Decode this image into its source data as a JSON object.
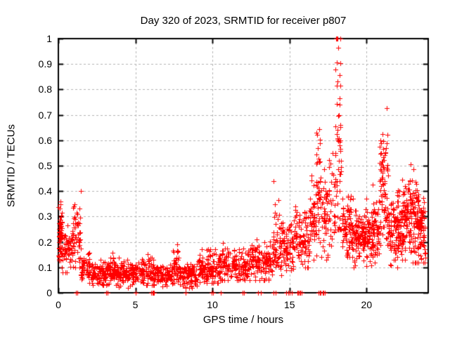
{
  "window": {
    "background": "#ffffff"
  },
  "chart_data": {
    "type": "scatter",
    "title": "Day 320 of 2023, SRMTID for receiver p807",
    "xlabel": "GPS time / hours",
    "ylabel": "SRMTID / TECUs",
    "xlim": [
      0,
      24
    ],
    "ylim": [
      0,
      1
    ],
    "x_ticks": [
      0,
      5,
      10,
      15,
      20
    ],
    "x_tick_labels": [
      "0",
      "5",
      "10",
      "15",
      "20"
    ],
    "y_ticks": [
      0,
      0.1,
      0.2,
      0.3,
      0.4,
      0.5,
      0.6,
      0.7,
      0.8,
      0.9,
      1
    ],
    "y_tick_labels": [
      "0",
      "0.1",
      "0.2",
      "0.3",
      "0.4",
      "0.5",
      "0.6",
      "0.7",
      "0.8",
      "0.9",
      "1"
    ],
    "grid": true,
    "grid_color": "#b3b3b3",
    "axis_color": "#000000",
    "legend": "none",
    "marker": {
      "shape": "plus",
      "color": "#ff0000",
      "size": 7
    },
    "series": [
      {
        "name": "SRMTID",
        "generator": {
          "seed": 42,
          "segments": [
            {
              "x0": 0.0,
              "x1": 0.25,
              "n": 55,
              "mean": 0.23,
              "sd": 0.055,
              "min": 0.12,
              "max": 0.36
            },
            {
              "x0": 0.25,
              "x1": 0.95,
              "n": 60,
              "mean": 0.17,
              "sd": 0.05,
              "min": 0.08,
              "max": 0.34
            },
            {
              "x0": 0.95,
              "x1": 1.45,
              "n": 50,
              "mean": 0.22,
              "sd": 0.075,
              "min": 0.1,
              "max": 0.4
            },
            {
              "x0": 1.45,
              "x1": 2.2,
              "n": 60,
              "mean": 0.1,
              "sd": 0.03,
              "min": 0.04,
              "max": 0.18
            },
            {
              "x0": 2.2,
              "x1": 3.3,
              "n": 95,
              "mean": 0.075,
              "sd": 0.025,
              "min": 0.03,
              "max": 0.14
            },
            {
              "x0": 3.3,
              "x1": 3.7,
              "n": 40,
              "mean": 0.1,
              "sd": 0.035,
              "min": 0.04,
              "max": 0.18
            },
            {
              "x0": 3.7,
              "x1": 5.3,
              "n": 130,
              "mean": 0.075,
              "sd": 0.025,
              "min": 0.02,
              "max": 0.14
            },
            {
              "x0": 5.3,
              "x1": 6.1,
              "n": 70,
              "mean": 0.085,
              "sd": 0.03,
              "min": 0.03,
              "max": 0.17
            },
            {
              "x0": 6.1,
              "x1": 7.4,
              "n": 110,
              "mean": 0.07,
              "sd": 0.022,
              "min": 0.02,
              "max": 0.13
            },
            {
              "x0": 7.4,
              "x1": 7.8,
              "n": 40,
              "mean": 0.1,
              "sd": 0.035,
              "min": 0.04,
              "max": 0.19
            },
            {
              "x0": 7.8,
              "x1": 9.0,
              "n": 100,
              "mean": 0.07,
              "sd": 0.025,
              "min": 0.02,
              "max": 0.14
            },
            {
              "x0": 9.0,
              "x1": 10.4,
              "n": 115,
              "mean": 0.095,
              "sd": 0.03,
              "min": 0.04,
              "max": 0.17
            },
            {
              "x0": 10.4,
              "x1": 11.3,
              "n": 75,
              "mean": 0.12,
              "sd": 0.04,
              "min": 0.05,
              "max": 0.23
            },
            {
              "x0": 11.3,
              "x1": 12.4,
              "n": 90,
              "mean": 0.105,
              "sd": 0.032,
              "min": 0.05,
              "max": 0.19
            },
            {
              "x0": 12.4,
              "x1": 13.1,
              "n": 60,
              "mean": 0.125,
              "sd": 0.04,
              "min": 0.05,
              "max": 0.21
            },
            {
              "x0": 13.1,
              "x1": 13.9,
              "n": 65,
              "mean": 0.13,
              "sd": 0.04,
              "min": 0.05,
              "max": 0.22
            },
            {
              "x0": 13.9,
              "x1": 14.45,
              "n": 55,
              "mean": 0.21,
              "sd": 0.08,
              "min": 0.05,
              "max": 0.44
            },
            {
              "x0": 14.45,
              "x1": 15.3,
              "n": 70,
              "mean": 0.17,
              "sd": 0.05,
              "min": 0.07,
              "max": 0.3
            },
            {
              "x0": 15.3,
              "x1": 16.3,
              "n": 90,
              "mean": 0.22,
              "sd": 0.06,
              "min": 0.1,
              "max": 0.4
            },
            {
              "x0": 16.3,
              "x1": 16.75,
              "n": 45,
              "mean": 0.28,
              "sd": 0.08,
              "min": 0.13,
              "max": 0.48
            },
            {
              "x0": 16.75,
              "x1": 17.05,
              "n": 40,
              "mean": 0.42,
              "sd": 0.13,
              "min": 0.18,
              "max": 0.7
            },
            {
              "x0": 17.05,
              "x1": 17.95,
              "n": 75,
              "mean": 0.3,
              "sd": 0.1,
              "min": 0.13,
              "max": 0.65
            },
            {
              "x0": 17.95,
              "x1": 18.35,
              "n": 60,
              "mean": 0.55,
              "sd": 0.22,
              "min": 0.25,
              "max": 1.0
            },
            {
              "x0": 18.35,
              "x1": 19.0,
              "n": 70,
              "mean": 0.28,
              "sd": 0.07,
              "min": 0.14,
              "max": 0.46
            },
            {
              "x0": 19.0,
              "x1": 20.4,
              "n": 170,
              "mean": 0.22,
              "sd": 0.05,
              "min": 0.1,
              "max": 0.37
            },
            {
              "x0": 20.4,
              "x1": 20.85,
              "n": 55,
              "mean": 0.26,
              "sd": 0.07,
              "min": 0.12,
              "max": 0.44
            },
            {
              "x0": 20.85,
              "x1": 21.35,
              "n": 75,
              "mean": 0.42,
              "sd": 0.13,
              "min": 0.17,
              "max": 0.77
            },
            {
              "x0": 21.35,
              "x1": 22.3,
              "n": 125,
              "mean": 0.25,
              "sd": 0.07,
              "min": 0.1,
              "max": 0.46
            },
            {
              "x0": 22.3,
              "x1": 22.9,
              "n": 90,
              "mean": 0.3,
              "sd": 0.08,
              "min": 0.13,
              "max": 0.52
            },
            {
              "x0": 22.9,
              "x1": 23.35,
              "n": 70,
              "mean": 0.3,
              "sd": 0.1,
              "min": 0.12,
              "max": 0.57
            },
            {
              "x0": 23.35,
              "x1": 23.82,
              "n": 75,
              "mean": 0.25,
              "sd": 0.07,
              "min": 0.12,
              "max": 0.43
            }
          ]
        }
      }
    ],
    "zero_value_marker_x": [
      1.14,
      1.23,
      3.09,
      3.21,
      5.04,
      6.03,
      6.1,
      6.17,
      6.22,
      8.27,
      9.94,
      10.06,
      10.54,
      11.94,
      12.04,
      12.95,
      13.13,
      13.94,
      14.1,
      14.77,
      14.9,
      15.0,
      15.14,
      15.5,
      15.57,
      15.64,
      15.71,
      15.8,
      16.9,
      16.97,
      17.04,
      17.14,
      17.2,
      17.27
    ]
  }
}
